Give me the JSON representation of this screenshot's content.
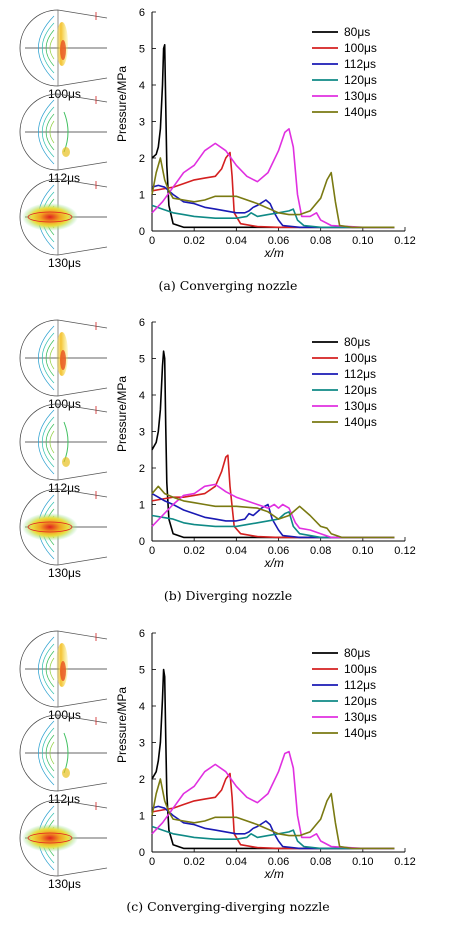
{
  "panels": [
    {
      "caption": "(a) Converging nozzle",
      "snapshot_labels": [
        "100μs",
        "112μs",
        "130μs"
      ]
    },
    {
      "caption": "(b) Diverging nozzle",
      "snapshot_labels": [
        "100μs",
        "112μs",
        "130μs"
      ]
    },
    {
      "caption": "(c) Converging-diverging nozzle",
      "snapshot_labels": [
        "100μs",
        "112μs",
        "130μs"
      ]
    }
  ],
  "series_colors": [
    "#000000",
    "#d42020",
    "#1a1ab4",
    "#0f8a86",
    "#e030e0",
    "#7a7a12"
  ],
  "chart_data": [
    {
      "type": "line",
      "xlabel": "x/m",
      "ylabel": "Pressure/MPa",
      "xlim": [
        0,
        0.12
      ],
      "ylim": [
        0,
        6
      ],
      "xticks": [
        "0",
        "0.02",
        "0.04",
        "0.06",
        "0.08",
        "0.10",
        "0.12"
      ],
      "yticks": [
        "0",
        "1",
        "2",
        "3",
        "4",
        "5",
        "6"
      ],
      "legend_position": "top-right",
      "series": [
        {
          "name": "80μs",
          "x": [
            0,
            0.002,
            0.003,
            0.004,
            0.005,
            0.0055,
            0.006,
            0.0065,
            0.007,
            0.008,
            0.01,
            0.015,
            0.02,
            0.03,
            0.04,
            0.05,
            0.06,
            0.07,
            0.08,
            0.09,
            0.1,
            0.115
          ],
          "y": [
            2.0,
            2.1,
            2.3,
            2.8,
            4.0,
            5.0,
            5.1,
            3.5,
            1.8,
            0.7,
            0.2,
            0.1,
            0.1,
            0.1,
            0.1,
            0.1,
            0.1,
            0.1,
            0.1,
            0.1,
            0.1,
            0.1
          ]
        },
        {
          "name": "100μs",
          "x": [
            0,
            0.005,
            0.01,
            0.015,
            0.02,
            0.025,
            0.03,
            0.033,
            0.035,
            0.037,
            0.038,
            0.039,
            0.042,
            0.05,
            0.06,
            0.08,
            0.1,
            0.115
          ],
          "y": [
            1.1,
            1.15,
            1.2,
            1.3,
            1.4,
            1.45,
            1.5,
            1.7,
            2.0,
            2.15,
            1.5,
            0.5,
            0.2,
            0.12,
            0.1,
            0.1,
            0.1,
            0.1
          ]
        },
        {
          "name": "112μs",
          "x": [
            0,
            0.003,
            0.006,
            0.01,
            0.015,
            0.02,
            0.025,
            0.03,
            0.035,
            0.04,
            0.044,
            0.046,
            0.048,
            0.05,
            0.054,
            0.056,
            0.058,
            0.06,
            0.062,
            0.07,
            0.08,
            0.1,
            0.115
          ],
          "y": [
            1.2,
            1.25,
            1.2,
            1.0,
            0.8,
            0.75,
            0.65,
            0.6,
            0.55,
            0.5,
            0.5,
            0.55,
            0.65,
            0.7,
            0.85,
            0.75,
            0.5,
            0.3,
            0.15,
            0.1,
            0.1,
            0.1,
            0.1
          ]
        },
        {
          "name": "120μs",
          "x": [
            0,
            0.005,
            0.01,
            0.015,
            0.02,
            0.03,
            0.04,
            0.045,
            0.047,
            0.05,
            0.055,
            0.06,
            0.065,
            0.067,
            0.069,
            0.072,
            0.08,
            0.1,
            0.115
          ],
          "y": [
            0.7,
            0.6,
            0.5,
            0.45,
            0.4,
            0.35,
            0.35,
            0.4,
            0.5,
            0.4,
            0.45,
            0.5,
            0.55,
            0.6,
            0.3,
            0.15,
            0.1,
            0.1,
            0.1
          ]
        },
        {
          "name": "130μs",
          "x": [
            0,
            0.005,
            0.01,
            0.015,
            0.02,
            0.025,
            0.03,
            0.035,
            0.04,
            0.045,
            0.05,
            0.055,
            0.06,
            0.063,
            0.065,
            0.067,
            0.069,
            0.071,
            0.075,
            0.078,
            0.08,
            0.085,
            0.1,
            0.115
          ],
          "y": [
            0.5,
            0.8,
            1.2,
            1.6,
            1.8,
            2.2,
            2.4,
            2.2,
            1.8,
            1.5,
            1.35,
            1.6,
            2.2,
            2.7,
            2.8,
            2.3,
            1.0,
            0.4,
            0.4,
            0.5,
            0.3,
            0.15,
            0.1,
            0.1
          ]
        },
        {
          "name": "140μs",
          "x": [
            0,
            0.002,
            0.004,
            0.006,
            0.008,
            0.01,
            0.015,
            0.02,
            0.025,
            0.03,
            0.04,
            0.05,
            0.06,
            0.065,
            0.07,
            0.075,
            0.08,
            0.083,
            0.085,
            0.087,
            0.089,
            0.095,
            0.1,
            0.115
          ],
          "y": [
            1.0,
            1.6,
            2.0,
            1.4,
            1.1,
            0.9,
            0.85,
            0.8,
            0.85,
            0.95,
            0.95,
            0.75,
            0.5,
            0.45,
            0.45,
            0.55,
            0.9,
            1.4,
            1.6,
            0.8,
            0.15,
            0.1,
            0.1,
            0.1
          ]
        }
      ]
    },
    {
      "type": "line",
      "xlabel": "x/m",
      "ylabel": "Pressure/MPa",
      "xlim": [
        0,
        0.12
      ],
      "ylim": [
        0,
        6
      ],
      "xticks": [
        "0",
        "0.02",
        "0.04",
        "0.06",
        "0.08",
        "0.10",
        "0.12"
      ],
      "yticks": [
        "0",
        "1",
        "2",
        "3",
        "4",
        "5",
        "6"
      ],
      "legend_position": "top-right",
      "series": [
        {
          "name": "80μs",
          "x": [
            0,
            0.002,
            0.003,
            0.004,
            0.005,
            0.0055,
            0.006,
            0.0065,
            0.007,
            0.008,
            0.01,
            0.015,
            0.02,
            0.03,
            0.04,
            0.05,
            0.06,
            0.07,
            0.08,
            0.09,
            0.1,
            0.115
          ],
          "y": [
            2.5,
            2.7,
            3.0,
            3.6,
            4.8,
            5.2,
            5.0,
            3.2,
            1.6,
            0.6,
            0.2,
            0.1,
            0.1,
            0.1,
            0.1,
            0.1,
            0.1,
            0.1,
            0.1,
            0.1,
            0.1,
            0.1
          ]
        },
        {
          "name": "100μs",
          "x": [
            0,
            0.005,
            0.01,
            0.015,
            0.02,
            0.025,
            0.03,
            0.033,
            0.035,
            0.036,
            0.037,
            0.039,
            0.042,
            0.05,
            0.06,
            0.08,
            0.1,
            0.115
          ],
          "y": [
            1.1,
            1.15,
            1.2,
            1.2,
            1.25,
            1.3,
            1.5,
            1.9,
            2.3,
            2.35,
            1.5,
            0.4,
            0.2,
            0.12,
            0.1,
            0.1,
            0.1,
            0.1
          ]
        },
        {
          "name": "112μs",
          "x": [
            0,
            0.003,
            0.006,
            0.01,
            0.015,
            0.02,
            0.025,
            0.03,
            0.035,
            0.04,
            0.044,
            0.046,
            0.048,
            0.052,
            0.055,
            0.057,
            0.06,
            0.062,
            0.07,
            0.08,
            0.1,
            0.115
          ],
          "y": [
            1.3,
            1.2,
            1.1,
            1.0,
            0.85,
            0.75,
            0.65,
            0.6,
            0.55,
            0.55,
            0.6,
            0.75,
            0.7,
            0.9,
            1.0,
            0.6,
            0.3,
            0.15,
            0.1,
            0.1,
            0.1,
            0.1
          ]
        },
        {
          "name": "120μs",
          "x": [
            0,
            0.005,
            0.01,
            0.015,
            0.02,
            0.03,
            0.04,
            0.045,
            0.05,
            0.055,
            0.06,
            0.063,
            0.065,
            0.067,
            0.07,
            0.08,
            0.1,
            0.115
          ],
          "y": [
            0.7,
            0.65,
            0.6,
            0.5,
            0.45,
            0.4,
            0.4,
            0.45,
            0.5,
            0.55,
            0.6,
            0.75,
            0.8,
            0.4,
            0.2,
            0.1,
            0.1,
            0.1
          ]
        },
        {
          "name": "130μs",
          "x": [
            0,
            0.005,
            0.01,
            0.015,
            0.02,
            0.025,
            0.03,
            0.035,
            0.04,
            0.045,
            0.05,
            0.055,
            0.058,
            0.06,
            0.062,
            0.065,
            0.068,
            0.07,
            0.075,
            0.08,
            0.085,
            0.1,
            0.115
          ],
          "y": [
            0.4,
            0.7,
            1.0,
            1.25,
            1.3,
            1.5,
            1.55,
            1.35,
            1.2,
            1.1,
            1.0,
            0.9,
            1.0,
            0.9,
            1.0,
            0.9,
            0.5,
            0.35,
            0.3,
            0.2,
            0.1,
            0.1,
            0.1
          ]
        },
        {
          "name": "140μs",
          "x": [
            0,
            0.003,
            0.006,
            0.01,
            0.015,
            0.02,
            0.025,
            0.03,
            0.04,
            0.05,
            0.055,
            0.06,
            0.065,
            0.07,
            0.075,
            0.08,
            0.083,
            0.085,
            0.09,
            0.1,
            0.115
          ],
          "y": [
            1.3,
            1.5,
            1.3,
            1.2,
            1.1,
            1.05,
            1.0,
            0.95,
            0.95,
            0.9,
            0.8,
            0.6,
            0.7,
            0.95,
            0.7,
            0.4,
            0.35,
            0.2,
            0.1,
            0.1,
            0.1
          ]
        }
      ]
    },
    {
      "type": "line",
      "xlabel": "x/m",
      "ylabel": "Pressure/MPa",
      "xlim": [
        0,
        0.12
      ],
      "ylim": [
        0,
        6
      ],
      "xticks": [
        "0",
        "0.02",
        "0.04",
        "0.06",
        "0.08",
        "0.10",
        "0.12"
      ],
      "yticks": [
        "0",
        "1",
        "2",
        "3",
        "4",
        "5",
        "6"
      ],
      "legend_position": "top-right",
      "series": [
        {
          "name": "80μs",
          "x": [
            0,
            0.002,
            0.003,
            0.004,
            0.005,
            0.0055,
            0.006,
            0.0065,
            0.007,
            0.008,
            0.01,
            0.015,
            0.02,
            0.03,
            0.04,
            0.05,
            0.06,
            0.07,
            0.08,
            0.09,
            0.1,
            0.115
          ],
          "y": [
            2.0,
            2.2,
            2.5,
            3.0,
            4.2,
            5.0,
            4.8,
            3.2,
            1.6,
            0.6,
            0.2,
            0.1,
            0.1,
            0.1,
            0.1,
            0.1,
            0.1,
            0.1,
            0.1,
            0.1,
            0.1,
            0.1
          ]
        },
        {
          "name": "100μs",
          "x": [
            0,
            0.005,
            0.01,
            0.015,
            0.02,
            0.025,
            0.03,
            0.033,
            0.035,
            0.037,
            0.038,
            0.039,
            0.042,
            0.05,
            0.06,
            0.08,
            0.1,
            0.115
          ],
          "y": [
            1.1,
            1.15,
            1.2,
            1.3,
            1.4,
            1.45,
            1.5,
            1.7,
            2.0,
            2.15,
            1.5,
            0.5,
            0.2,
            0.12,
            0.1,
            0.1,
            0.1,
            0.1
          ]
        },
        {
          "name": "112μs",
          "x": [
            0,
            0.003,
            0.006,
            0.01,
            0.015,
            0.02,
            0.025,
            0.03,
            0.035,
            0.04,
            0.044,
            0.046,
            0.048,
            0.05,
            0.054,
            0.056,
            0.058,
            0.06,
            0.062,
            0.07,
            0.08,
            0.1,
            0.115
          ],
          "y": [
            1.2,
            1.25,
            1.2,
            1.0,
            0.8,
            0.75,
            0.65,
            0.6,
            0.55,
            0.5,
            0.5,
            0.55,
            0.65,
            0.7,
            0.85,
            0.75,
            0.5,
            0.3,
            0.15,
            0.1,
            0.1,
            0.1,
            0.1
          ]
        },
        {
          "name": "120μs",
          "x": [
            0,
            0.005,
            0.01,
            0.015,
            0.02,
            0.03,
            0.04,
            0.045,
            0.047,
            0.05,
            0.055,
            0.06,
            0.065,
            0.067,
            0.069,
            0.072,
            0.08,
            0.1,
            0.115
          ],
          "y": [
            0.7,
            0.6,
            0.5,
            0.45,
            0.4,
            0.35,
            0.35,
            0.4,
            0.5,
            0.4,
            0.45,
            0.5,
            0.55,
            0.6,
            0.3,
            0.15,
            0.1,
            0.1,
            0.1
          ]
        },
        {
          "name": "130μs",
          "x": [
            0,
            0.005,
            0.01,
            0.015,
            0.02,
            0.025,
            0.03,
            0.035,
            0.04,
            0.045,
            0.05,
            0.055,
            0.06,
            0.063,
            0.065,
            0.067,
            0.069,
            0.071,
            0.075,
            0.078,
            0.08,
            0.085,
            0.1,
            0.115
          ],
          "y": [
            0.5,
            0.8,
            1.2,
            1.6,
            1.8,
            2.2,
            2.4,
            2.2,
            1.8,
            1.5,
            1.35,
            1.6,
            2.2,
            2.7,
            2.75,
            2.3,
            1.0,
            0.4,
            0.4,
            0.5,
            0.3,
            0.15,
            0.1,
            0.1
          ]
        },
        {
          "name": "140μs",
          "x": [
            0,
            0.002,
            0.004,
            0.006,
            0.008,
            0.01,
            0.015,
            0.02,
            0.025,
            0.03,
            0.04,
            0.05,
            0.06,
            0.065,
            0.07,
            0.075,
            0.08,
            0.083,
            0.085,
            0.087,
            0.089,
            0.095,
            0.1,
            0.115
          ],
          "y": [
            1.0,
            1.6,
            2.0,
            1.4,
            1.1,
            0.9,
            0.85,
            0.8,
            0.85,
            0.95,
            0.95,
            0.75,
            0.5,
            0.45,
            0.45,
            0.55,
            0.9,
            1.4,
            1.6,
            0.8,
            0.15,
            0.1,
            0.1,
            0.1
          ]
        }
      ]
    }
  ]
}
